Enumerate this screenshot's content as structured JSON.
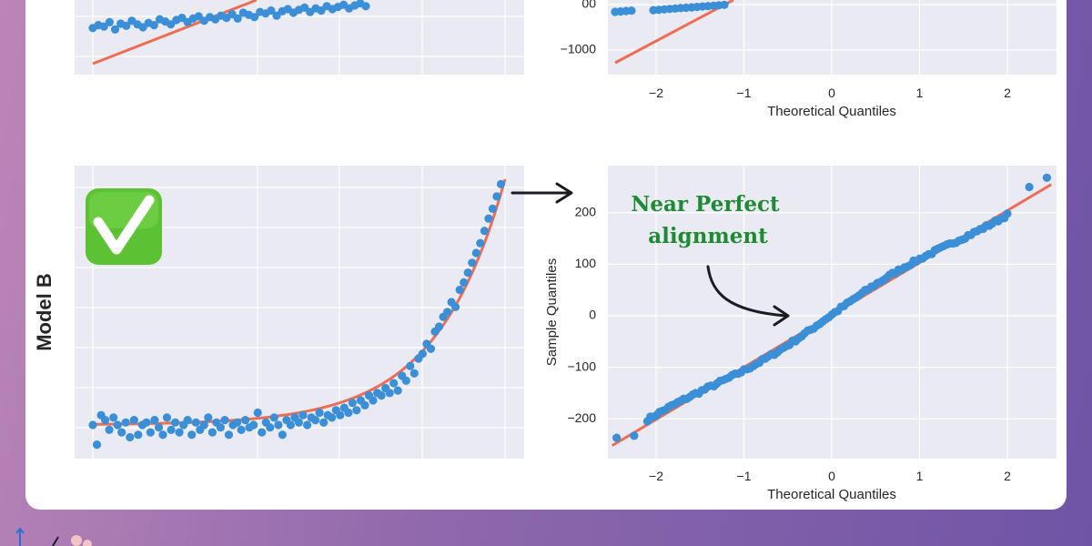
{
  "row_labels": {
    "model_b": "Model B"
  },
  "badges": {
    "check_mark": "check-mark"
  },
  "annotation": {
    "line1": "Near Perfect",
    "line2": "alignment"
  },
  "colors": {
    "points": "#3b8fd6",
    "fit": "#ee6d55",
    "panel_bg": "#eaeaf2",
    "annotation": "#1f8a34"
  },
  "chart_data": [
    {
      "id": "model-a-fit",
      "type": "scatter",
      "note": "Top-left panel, cropped at the top of the image; no tick labels visible",
      "x_range": [
        0,
        100
      ],
      "points_y": [
        14,
        18,
        16,
        22,
        12,
        20,
        17,
        24,
        19,
        15,
        21,
        18,
        26,
        23,
        19,
        25,
        28,
        22,
        27,
        30,
        24,
        29,
        26,
        31,
        28,
        33,
        27,
        35,
        32,
        29,
        36,
        34,
        38,
        31,
        37,
        40,
        35,
        39,
        42,
        36,
        41,
        38,
        44,
        40,
        43,
        46,
        41,
        45,
        48,
        44
      ],
      "line": {
        "x": [
          0,
          100
        ],
        "y": [
          0,
          100
        ]
      }
    },
    {
      "id": "model-a-qq",
      "type": "scatter",
      "note": "Top-right panel, cropped at the top of the image",
      "xlabel": "Theoretical Quantiles",
      "x_ticks": [
        -2,
        -1,
        0,
        1,
        2
      ],
      "y_ticks_visible": [
        -1000
      ],
      "y_tick_partial": "00",
      "x_range": [
        -2.6,
        2.6
      ],
      "y_range_visible": [
        -1150,
        -500
      ]
    },
    {
      "id": "model-b-fit",
      "type": "scatter",
      "note": "Bottom-left panel; no tick labels shown",
      "x_range": [
        0,
        100
      ],
      "y_range": [
        -10,
        100
      ],
      "fit": "exponential",
      "points": [
        [
          0,
          0
        ],
        [
          1,
          -8
        ],
        [
          2,
          4
        ],
        [
          3,
          2
        ],
        [
          4,
          -2
        ],
        [
          5,
          3
        ],
        [
          6,
          0
        ],
        [
          7,
          -3
        ],
        [
          8,
          1
        ],
        [
          9,
          -5
        ],
        [
          10,
          2
        ],
        [
          11,
          -4
        ],
        [
          12,
          0
        ],
        [
          13,
          1
        ],
        [
          14,
          -3
        ],
        [
          15,
          2
        ],
        [
          16,
          -1
        ],
        [
          17,
          -4
        ],
        [
          18,
          3
        ],
        [
          19,
          -2
        ],
        [
          20,
          1
        ],
        [
          21,
          -3
        ],
        [
          22,
          0
        ],
        [
          23,
          2
        ],
        [
          24,
          -4
        ],
        [
          25,
          1
        ],
        [
          26,
          -2
        ],
        [
          27,
          0
        ],
        [
          28,
          3
        ],
        [
          29,
          -3
        ],
        [
          30,
          1
        ],
        [
          31,
          -1
        ],
        [
          32,
          2
        ],
        [
          33,
          -4
        ],
        [
          34,
          0
        ],
        [
          35,
          1
        ],
        [
          36,
          -2
        ],
        [
          37,
          2
        ],
        [
          38,
          -1
        ],
        [
          39,
          0
        ],
        [
          40,
          5
        ],
        [
          41,
          -3
        ],
        [
          42,
          1
        ],
        [
          43,
          -1
        ],
        [
          44,
          3
        ],
        [
          45,
          0
        ],
        [
          46,
          -4
        ],
        [
          47,
          2
        ],
        [
          48,
          0
        ],
        [
          49,
          3
        ],
        [
          50,
          1
        ],
        [
          51,
          4
        ],
        [
          52,
          0
        ],
        [
          53,
          3
        ],
        [
          54,
          2
        ],
        [
          55,
          5
        ],
        [
          56,
          1
        ],
        [
          57,
          4
        ],
        [
          58,
          3
        ],
        [
          59,
          6
        ],
        [
          60,
          4
        ],
        [
          61,
          7
        ],
        [
          62,
          5
        ],
        [
          63,
          9
        ],
        [
          64,
          6
        ],
        [
          65,
          10
        ],
        [
          66,
          8
        ],
        [
          67,
          12
        ],
        [
          68,
          10
        ],
        [
          69,
          13
        ],
        [
          70,
          12
        ],
        [
          71,
          15
        ],
        [
          72,
          13
        ],
        [
          73,
          17
        ],
        [
          74,
          14
        ],
        [
          75,
          20
        ],
        [
          76,
          18
        ],
        [
          77,
          24
        ],
        [
          78,
          21
        ],
        [
          79,
          27
        ],
        [
          80,
          29
        ],
        [
          81,
          33
        ],
        [
          82,
          31
        ],
        [
          83,
          38
        ],
        [
          84,
          40
        ],
        [
          85,
          44
        ],
        [
          86,
          46
        ],
        [
          87,
          50
        ],
        [
          88,
          48
        ],
        [
          89,
          55
        ],
        [
          90,
          58
        ],
        [
          91,
          62
        ],
        [
          92,
          66
        ],
        [
          93,
          70
        ],
        [
          94,
          74
        ],
        [
          95,
          79
        ],
        [
          96,
          84
        ],
        [
          97,
          88
        ],
        [
          98,
          93
        ],
        [
          99,
          98
        ]
      ]
    },
    {
      "id": "model-b-qq",
      "type": "scatter",
      "xlabel": "Theoretical Quantiles",
      "ylabel": "Sample Quantiles",
      "x_ticks": [
        -2,
        -1,
        0,
        1,
        2
      ],
      "y_ticks": [
        -200,
        -100,
        0,
        100,
        200
      ],
      "x_range": [
        -2.6,
        2.6
      ],
      "y_range": [
        -275,
        290
      ],
      "line": {
        "x": [
          -2.5,
          2.5
        ],
        "y": [
          -252,
          255
        ]
      },
      "points_count": 120,
      "extremes": [
        [
          -2.45,
          -237
        ],
        [
          -2.25,
          -233
        ],
        [
          2.25,
          250
        ],
        [
          2.45,
          268
        ]
      ]
    }
  ]
}
